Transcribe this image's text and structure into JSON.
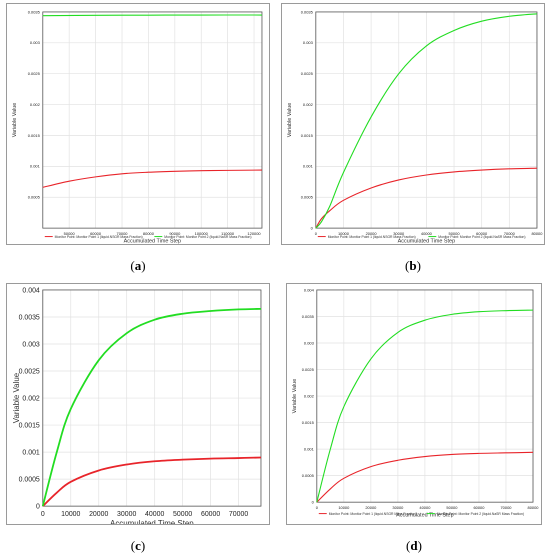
{
  "captions": [
    "a",
    "b",
    "c",
    "d"
  ],
  "legend": {
    "red_label": "Monitor Point: Monitor Point 1 (liquid.NSGR Mass Fraction)",
    "green_label": "Monitor Point: Monitor Point 2 (liquid.NaSR Mass Fraction)"
  },
  "chart_data": [
    {
      "panel": "a",
      "type": "line",
      "xlabel": "Accumulated Time Step",
      "ylabel": "Variable Value",
      "xlim": [
        40000,
        123000
      ],
      "ylim": [
        0,
        0.0035
      ],
      "xticks": [
        50000,
        60000,
        70000,
        80000,
        90000,
        100000,
        110000,
        120000
      ],
      "yticks": [
        0.0005,
        0.001,
        0.0015,
        0.002,
        0.0025,
        0.003,
        0.0035
      ],
      "yticklabels": [
        "0.0005",
        "0.001",
        "0.0015",
        "0.002",
        "0.0025",
        "0.003",
        "0.0035"
      ],
      "grid": true,
      "legend_position": "bottom",
      "series": [
        {
          "color": "#e8242a",
          "x": [
            40000,
            50000,
            60000,
            70000,
            80000,
            90000,
            100000,
            110000,
            123000
          ],
          "y": [
            0.00066,
            0.00076,
            0.00083,
            0.00088,
            0.000905,
            0.00092,
            0.00093,
            0.000935,
            0.00094
          ]
        },
        {
          "color": "#22dd22",
          "x": [
            40000,
            60000,
            80000,
            100000,
            123000
          ],
          "y": [
            0.00344,
            0.003445,
            0.003448,
            0.00345,
            0.00345
          ]
        }
      ]
    },
    {
      "panel": "b",
      "type": "line",
      "xlabel": "Accumulated Time Step",
      "ylabel": "Variable Value",
      "xlim": [
        0,
        80000
      ],
      "ylim": [
        0,
        0.0035
      ],
      "xticks": [
        0,
        10000,
        20000,
        30000,
        40000,
        50000,
        60000,
        70000,
        80000
      ],
      "yticks": [
        0,
        0.0005,
        0.001,
        0.0015,
        0.002,
        0.0025,
        0.003,
        0.0035
      ],
      "yticklabels": [
        "0",
        "0.0005",
        "0.001",
        "0.0015",
        "0.002",
        "0.0025",
        "0.003",
        "0.0035"
      ],
      "grid": true,
      "legend_position": "bottom",
      "series": [
        {
          "color": "#e8242a",
          "x": [
            0,
            2000,
            5000,
            10000,
            20000,
            30000,
            40000,
            50000,
            60000,
            70000,
            80000
          ],
          "y": [
            0,
            0.00015,
            0.00028,
            0.00045,
            0.00065,
            0.00078,
            0.00086,
            0.00091,
            0.00094,
            0.00096,
            0.00097
          ]
        },
        {
          "color": "#22dd22",
          "x": [
            0,
            2000,
            5000,
            10000,
            20000,
            30000,
            40000,
            50000,
            60000,
            70000,
            80000
          ],
          "y": [
            0,
            0.0001,
            0.00035,
            0.0009,
            0.0018,
            0.0025,
            0.00295,
            0.0032,
            0.00335,
            0.00343,
            0.00347
          ]
        }
      ]
    },
    {
      "panel": "c",
      "type": "line",
      "xlabel": "Accumulated Time Step",
      "ylabel": "Variable Value",
      "xlim": [
        0,
        78000
      ],
      "ylim": [
        0,
        0.004
      ],
      "xticks": [
        0,
        10000,
        20000,
        30000,
        40000,
        50000,
        60000,
        70000
      ],
      "yticks": [
        0,
        0.0005,
        0.001,
        0.0015,
        0.002,
        0.0025,
        0.003,
        0.0035,
        0.004
      ],
      "yticklabels": [
        "0",
        "0.0005",
        "0.001",
        "0.0015",
        "0.002",
        "0.0025",
        "0.003",
        "0.0035",
        "0.004"
      ],
      "grid": true,
      "series": [
        {
          "color": "#e8242a",
          "x": [
            0,
            5000,
            10000,
            20000,
            30000,
            40000,
            50000,
            60000,
            70000,
            78000
          ],
          "y": [
            0,
            0.00025,
            0.00045,
            0.00066,
            0.00077,
            0.00083,
            0.00086,
            0.00088,
            0.00089,
            0.0009
          ]
        },
        {
          "color": "#22dd22",
          "x": [
            0,
            5000,
            10000,
            20000,
            30000,
            40000,
            50000,
            60000,
            70000,
            78000
          ],
          "y": [
            0,
            0.001,
            0.0018,
            0.0027,
            0.0032,
            0.00345,
            0.00356,
            0.00361,
            0.00364,
            0.00365
          ]
        }
      ]
    },
    {
      "panel": "d",
      "type": "line",
      "xlabel": "Accumulated Time Step",
      "ylabel": "Variable Value",
      "xlim": [
        0,
        80000
      ],
      "ylim": [
        0,
        0.004
      ],
      "xticks": [
        0,
        10000,
        20000,
        30000,
        40000,
        50000,
        60000,
        70000,
        80000
      ],
      "yticks": [
        0,
        0.0005,
        0.001,
        0.0015,
        0.002,
        0.0025,
        0.003,
        0.0035,
        0.004
      ],
      "yticklabels": [
        "0",
        "0.0005",
        "0.001",
        "0.0015",
        "0.002",
        "0.0025",
        "0.003",
        "0.0035",
        "0.004"
      ],
      "grid": true,
      "legend_position": "bottom",
      "series": [
        {
          "color": "#e8242a",
          "x": [
            0,
            5000,
            10000,
            20000,
            30000,
            40000,
            50000,
            60000,
            70000,
            80000
          ],
          "y": [
            0,
            0.00025,
            0.00045,
            0.00067,
            0.00079,
            0.00086,
            0.0009,
            0.00092,
            0.00093,
            0.00094
          ]
        },
        {
          "color": "#22dd22",
          "x": [
            0,
            5000,
            10000,
            20000,
            30000,
            40000,
            50000,
            60000,
            70000,
            80000
          ],
          "y": [
            0,
            0.001,
            0.0018,
            0.0027,
            0.0032,
            0.00343,
            0.00354,
            0.00359,
            0.00361,
            0.00362
          ]
        }
      ]
    }
  ]
}
